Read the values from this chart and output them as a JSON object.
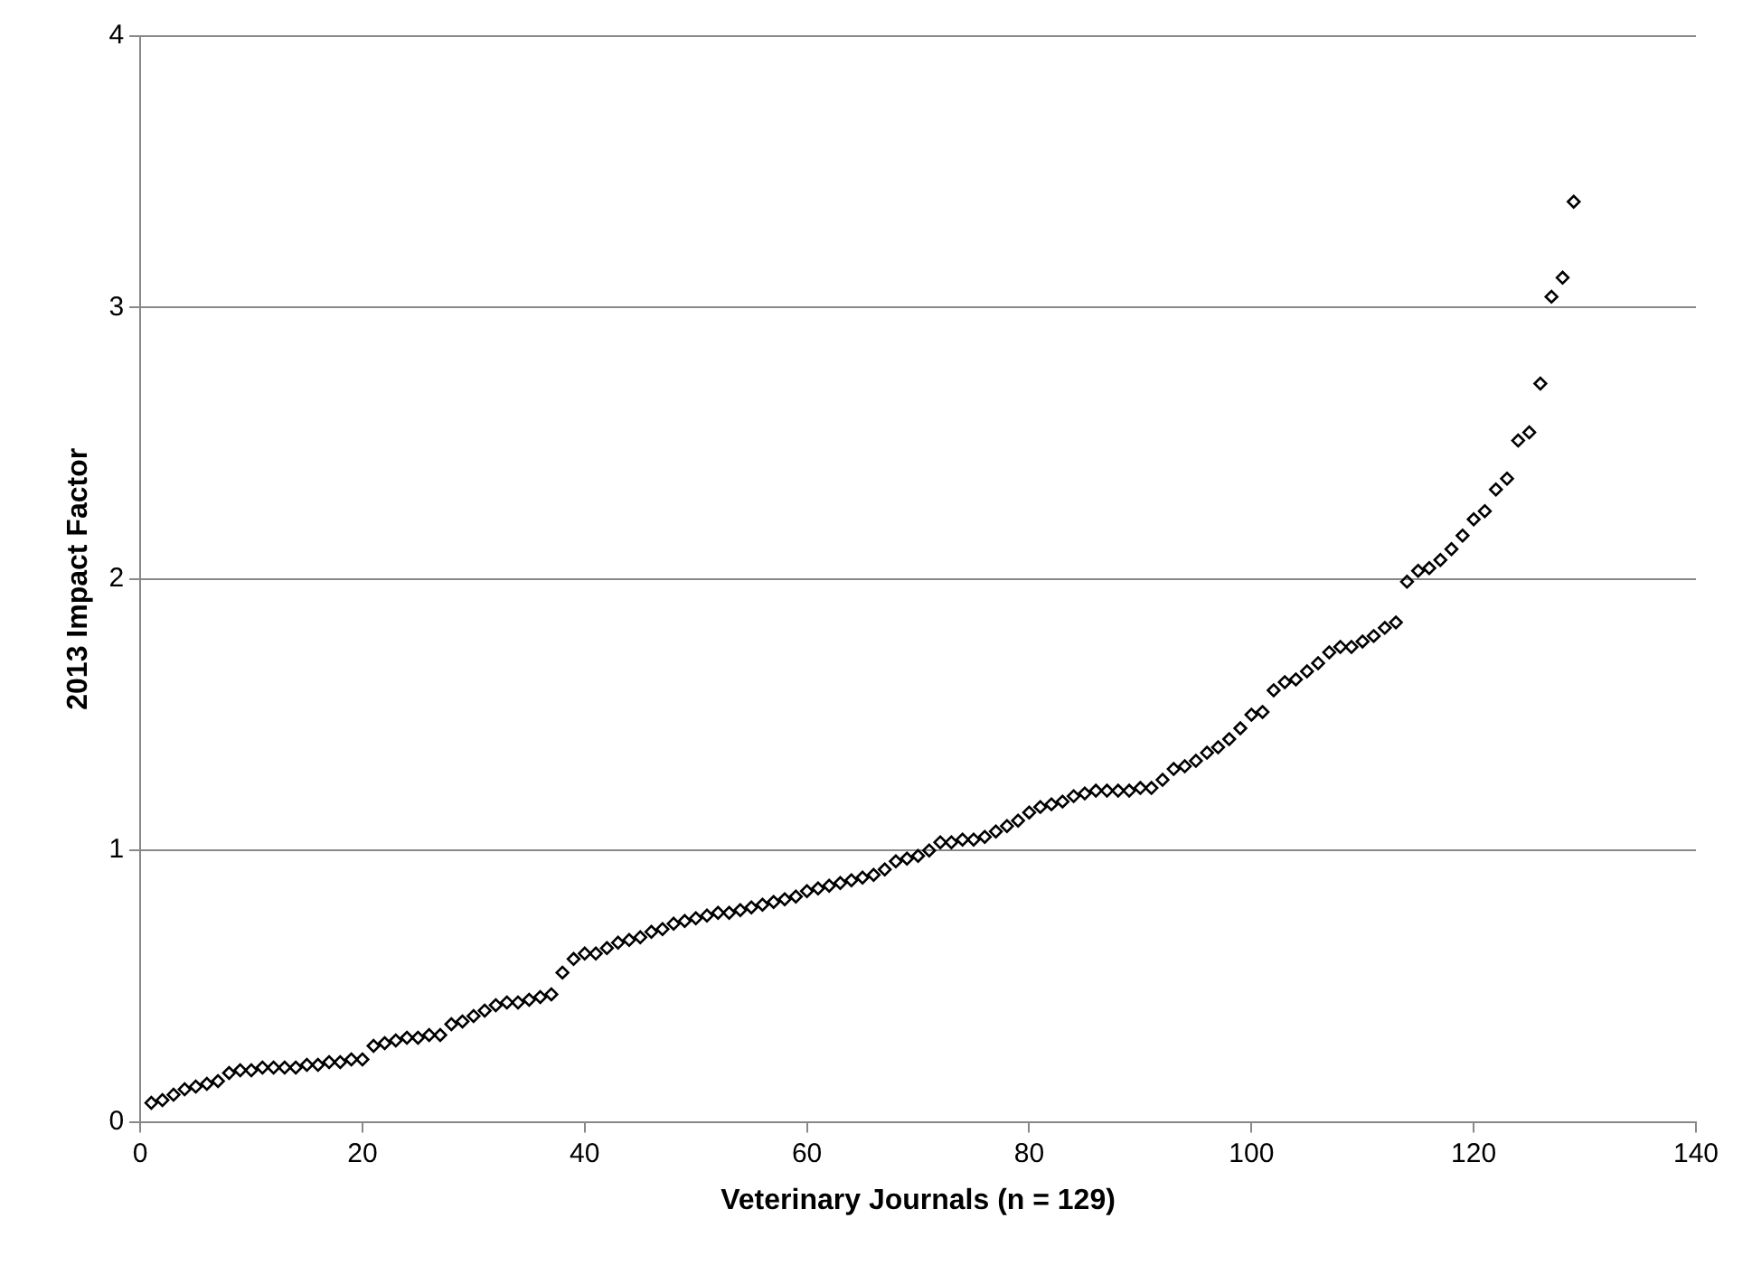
{
  "chart_data": {
    "type": "scatter",
    "xlabel": "Veterinary Journals (n = 129)",
    "ylabel": "2013 Impact Factor",
    "x": [
      1,
      2,
      3,
      4,
      5,
      6,
      7,
      8,
      9,
      10,
      11,
      12,
      13,
      14,
      15,
      16,
      17,
      18,
      19,
      20,
      21,
      22,
      23,
      24,
      25,
      26,
      27,
      28,
      29,
      30,
      31,
      32,
      33,
      34,
      35,
      36,
      37,
      38,
      39,
      40,
      41,
      42,
      43,
      44,
      45,
      46,
      47,
      48,
      49,
      50,
      51,
      52,
      53,
      54,
      55,
      56,
      57,
      58,
      59,
      60,
      61,
      62,
      63,
      64,
      65,
      66,
      67,
      68,
      69,
      70,
      71,
      72,
      73,
      74,
      75,
      76,
      77,
      78,
      79,
      80,
      81,
      82,
      83,
      84,
      85,
      86,
      87,
      88,
      89,
      90,
      91,
      92,
      93,
      94,
      95,
      96,
      97,
      98,
      99,
      100,
      101,
      102,
      103,
      104,
      105,
      106,
      107,
      108,
      109,
      110,
      111,
      112,
      113,
      114,
      115,
      116,
      117,
      118,
      119,
      120,
      121,
      122,
      123,
      124,
      125,
      126,
      127,
      128,
      129
    ],
    "series": [
      {
        "color": "#000000",
        "values": [
          0.07,
          0.08,
          0.1,
          0.12,
          0.13,
          0.14,
          0.15,
          0.18,
          0.19,
          0.19,
          0.2,
          0.2,
          0.2,
          0.2,
          0.21,
          0.21,
          0.22,
          0.22,
          0.23,
          0.23,
          0.28,
          0.29,
          0.3,
          0.31,
          0.31,
          0.32,
          0.32,
          0.36,
          0.37,
          0.39,
          0.41,
          0.43,
          0.44,
          0.44,
          0.45,
          0.46,
          0.47,
          0.55,
          0.6,
          0.62,
          0.62,
          0.64,
          0.66,
          0.67,
          0.68,
          0.7,
          0.71,
          0.73,
          0.74,
          0.75,
          0.76,
          0.77,
          0.77,
          0.78,
          0.79,
          0.8,
          0.81,
          0.82,
          0.83,
          0.85,
          0.86,
          0.87,
          0.88,
          0.89,
          0.9,
          0.91,
          0.93,
          0.96,
          0.97,
          0.98,
          1.0,
          1.03,
          1.03,
          1.04,
          1.04,
          1.05,
          1.07,
          1.09,
          1.11,
          1.14,
          1.16,
          1.17,
          1.18,
          1.2,
          1.21,
          1.22,
          1.22,
          1.22,
          1.22,
          1.23,
          1.23,
          1.26,
          1.3,
          1.31,
          1.33,
          1.36,
          1.38,
          1.41,
          1.45,
          1.5,
          1.51,
          1.59,
          1.62,
          1.63,
          1.66,
          1.69,
          1.73,
          1.75,
          1.75,
          1.77,
          1.79,
          1.82,
          1.84,
          1.99,
          2.03,
          2.04,
          2.07,
          2.11,
          2.16,
          2.22,
          2.25,
          2.33,
          2.37,
          2.51,
          2.54,
          2.72,
          3.04,
          3.11,
          3.39
        ]
      }
    ],
    "xlim": [
      0,
      140
    ],
    "xticks": [
      0,
      20,
      40,
      60,
      80,
      100,
      120,
      140
    ],
    "ylim": [
      0,
      4
    ],
    "yticks": [
      0,
      1,
      2,
      3,
      4
    ],
    "grid": "y",
    "legend": false,
    "marker": "diamond"
  }
}
